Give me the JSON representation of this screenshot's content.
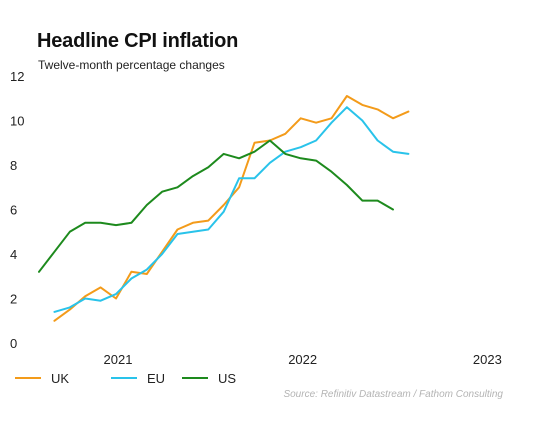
{
  "chart_data": {
    "type": "line",
    "title": "Headline CPI inflation",
    "subtitle": "Twelve-month percentage changes",
    "source": "Source: Refinitiv Datastream / Fathom Consulting",
    "xlabel": "",
    "ylabel": "",
    "ylim": [
      0,
      12
    ],
    "yticks": [
      "0",
      "2",
      "4",
      "6",
      "8",
      "10",
      "12"
    ],
    "xlim": [
      "2020-08",
      "2023-02"
    ],
    "xticks": [
      {
        "label": "2021",
        "date": "2021-01"
      },
      {
        "label": "2022",
        "date": "2022-01"
      },
      {
        "label": "2023",
        "date": "2023-01"
      }
    ],
    "grid": false,
    "legend_position": "bottom-left",
    "x": [
      "2020-08",
      "2020-09",
      "2020-10",
      "2020-11",
      "2020-12",
      "2021-01",
      "2021-02",
      "2021-03",
      "2021-04",
      "2021-05",
      "2021-06",
      "2021-07",
      "2021-08",
      "2021-09",
      "2021-10",
      "2021-11",
      "2021-12",
      "2022-01",
      "2022-02",
      "2022-03",
      "2022-04",
      "2022-05",
      "2022-06",
      "2022-07",
      "2022-08",
      "2022-09",
      "2022-10",
      "2022-11",
      "2022-12",
      "2023-01",
      "2023-02"
    ],
    "series": [
      {
        "name": "UK",
        "color": "#f39b1a",
        "values": [
          null,
          1.0,
          1.5,
          2.1,
          2.5,
          2.0,
          3.2,
          3.1,
          4.1,
          5.1,
          5.4,
          5.5,
          6.2,
          7.0,
          9.0,
          9.1,
          9.4,
          10.1,
          9.9,
          10.1,
          11.1,
          10.7,
          10.5,
          10.1,
          10.4,
          null,
          null,
          null,
          null,
          null,
          null
        ]
      },
      {
        "name": "EU",
        "color": "#29c3ea",
        "values": [
          null,
          1.4,
          1.6,
          2.0,
          1.9,
          2.2,
          2.9,
          3.3,
          4.0,
          4.9,
          5.0,
          5.1,
          5.9,
          7.4,
          7.4,
          8.1,
          8.6,
          8.8,
          9.1,
          9.9,
          10.6,
          10.0,
          9.1,
          8.6,
          8.5,
          null,
          null,
          null,
          null,
          null,
          null
        ]
      },
      {
        "name": "US",
        "color": "#1d8a1d",
        "values": [
          3.2,
          4.1,
          5.0,
          5.4,
          5.4,
          5.3,
          5.4,
          6.2,
          6.8,
          7.0,
          7.5,
          7.9,
          8.5,
          8.3,
          8.6,
          9.1,
          8.5,
          8.3,
          8.2,
          7.7,
          7.1,
          6.4,
          6.4,
          6.0,
          null,
          null,
          null,
          null,
          null,
          null,
          null
        ]
      }
    ]
  }
}
